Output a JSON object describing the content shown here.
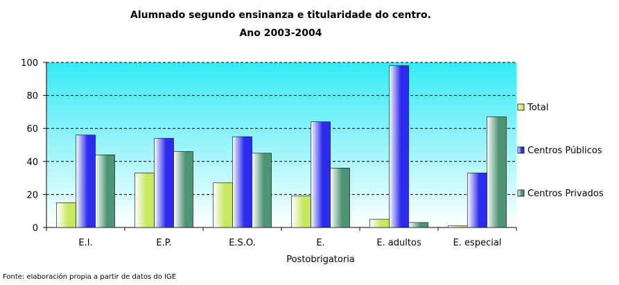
{
  "chart_data": {
    "type": "bar",
    "title": [
      "Alumnado segundo ensinanza e titularidade do centro.",
      "Ano 2003-2004"
    ],
    "categories": [
      "E.I.",
      "E.P.",
      "E.S.O.",
      "E.\nPostobrigatoria",
      "E. adultos",
      "E. especial"
    ],
    "series": [
      {
        "name": "Total",
        "color": "#c8e860",
        "values": [
          15,
          33,
          27,
          19,
          5,
          1
        ]
      },
      {
        "name": "Centros Públicos",
        "color": "#2c2cf0",
        "values": [
          56,
          54,
          55,
          64,
          98,
          33
        ]
      },
      {
        "name": "Centros Privados",
        "color": "#4f9474",
        "values": [
          44,
          46,
          45,
          36,
          3,
          67
        ]
      }
    ],
    "ylim": [
      0,
      100
    ],
    "yticks": [
      0,
      20,
      40,
      60,
      80,
      100
    ],
    "grid": true,
    "legend": "right",
    "source": "Fonte: elaboración propia a partir de datos do IGE"
  }
}
